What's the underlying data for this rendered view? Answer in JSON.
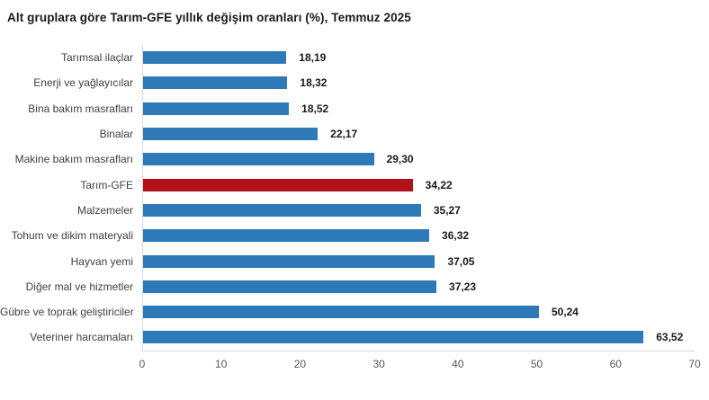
{
  "title": "Alt gruplara göre Tarım-GFE yıllık değişim oranları (%), Temmuz 2025",
  "chart_data": {
    "type": "bar",
    "orientation": "horizontal",
    "title": "Alt gruplara göre Tarım-GFE yıllık değişim oranları (%), Temmuz 2025",
    "categories": [
      "Tarımsal ilaçlar",
      "Enerji  ve yağlayıcılar",
      "Bina bakım masrafları",
      "Binalar",
      "Makine bakım masrafları",
      "Tarım-GFE",
      "Malzemeler",
      "Tohum ve dikim materyali",
      "Hayvan yemi",
      "Diğer mal ve hizmetler",
      "Gübre ve toprak geliştiriciler",
      "Veteriner harcamaları"
    ],
    "values": [
      18.19,
      18.32,
      18.52,
      22.17,
      29.3,
      34.22,
      35.27,
      36.32,
      37.05,
      37.23,
      50.24,
      63.52
    ],
    "value_labels": [
      "18,19",
      "18,32",
      "18,52",
      "22,17",
      "29,30",
      "34,22",
      "35,27",
      "36,32",
      "37,05",
      "37,23",
      "50,24",
      "63,52"
    ],
    "highlight_index": 5,
    "highlight_category": "Tarım-GFE",
    "colors": {
      "bar": "#2e79b7",
      "highlight_bar": "#b01217",
      "axis_line": "#d9d9d9",
      "tick_label": "#595959",
      "category_label": "#404040",
      "value_label": "#1a1a1a",
      "title": "#1a1a1a"
    },
    "xlabel": "",
    "ylabel": "",
    "xlim": [
      0,
      70
    ],
    "x_ticks": [
      "0",
      "10",
      "20",
      "30",
      "40",
      "50",
      "60",
      "70"
    ],
    "grid": false,
    "legend": "none"
  }
}
